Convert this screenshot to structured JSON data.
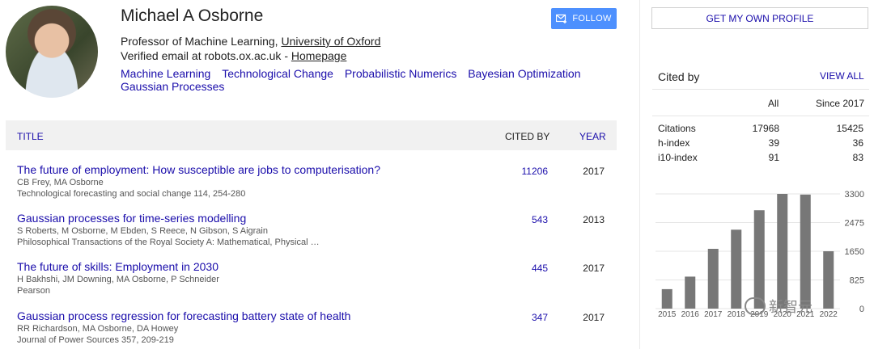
{
  "profile": {
    "name": "Michael A Osborne",
    "affiliation_prefix": "Professor of Machine Learning, ",
    "affiliation_link": "University of Oxford",
    "email_prefix": "Verified email at robots.ox.ac.uk - ",
    "homepage_link": "Homepage",
    "interests": [
      "Machine Learning",
      "Technological Change",
      "Probabilistic Numerics",
      "Bayesian Optimization",
      "Gaussian Processes"
    ],
    "follow_label": "FOLLOW"
  },
  "table": {
    "col_title": "TITLE",
    "col_cited": "CITED BY",
    "col_year": "YEAR",
    "rows": [
      {
        "title": "The future of employment: How susceptible are jobs to computerisation?",
        "authors": "CB Frey, MA Osborne",
        "venue": "Technological forecasting and social change 114, 254-280",
        "cites": "11206",
        "year": "2017"
      },
      {
        "title": "Gaussian processes for time-series modelling",
        "authors": "S Roberts, M Osborne, M Ebden, S Reece, N Gibson, S Aigrain",
        "venue": "Philosophical Transactions of the Royal Society A: Mathematical, Physical …",
        "cites": "543",
        "year": "2013"
      },
      {
        "title": "The future of skills: Employment in 2030",
        "authors": "H Bakhshi, JM Downing, MA Osborne, P Schneider",
        "venue": "Pearson",
        "cites": "445",
        "year": "2017"
      },
      {
        "title": "Gaussian process regression for forecasting battery state of health",
        "authors": "RR Richardson, MA Osborne, DA Howey",
        "venue": "Journal of Power Sources 357, 209-219",
        "cites": "347",
        "year": "2017"
      }
    ]
  },
  "sidebar": {
    "own_profile_label": "GET MY OWN PROFILE",
    "cited_by_title": "Cited by",
    "view_all_label": "VIEW ALL",
    "head_all": "All",
    "head_since": "Since 2017",
    "stats": [
      {
        "label": "Citations",
        "all": "17968",
        "since": "15425"
      },
      {
        "label": "h-index",
        "all": "39",
        "since": "36"
      },
      {
        "label": "i10-index",
        "all": "91",
        "since": "83"
      }
    ]
  },
  "chart_data": {
    "type": "bar",
    "categories": [
      "2015",
      "2016",
      "2017",
      "2018",
      "2019",
      "2020",
      "2021",
      "2022"
    ],
    "values": [
      560,
      920,
      1720,
      2270,
      2830,
      3300,
      3280,
      1650
    ],
    "yticks": [
      "3300",
      "2475",
      "1650",
      "825",
      "0"
    ],
    "ylim": [
      0,
      3300
    ],
    "bar_color": "#777777",
    "grid": true
  },
  "watermark": {
    "text": "新智元"
  }
}
